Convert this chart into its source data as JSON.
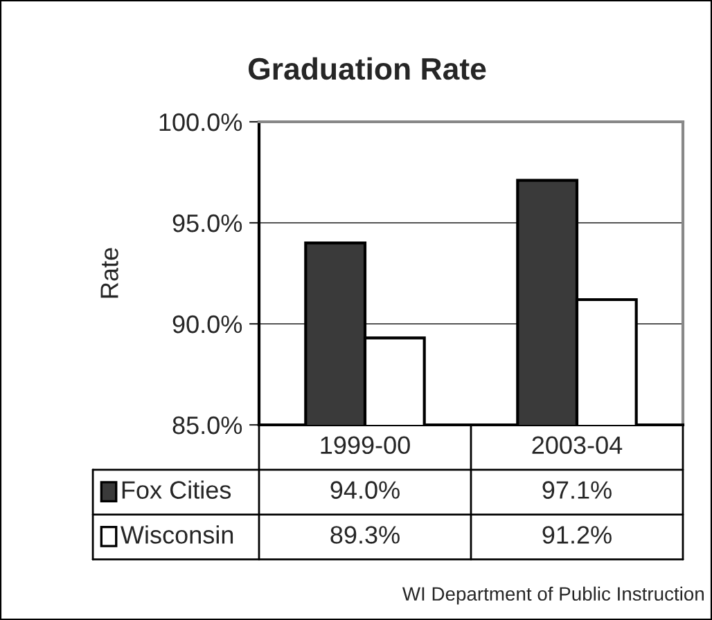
{
  "chart_data": {
    "type": "bar",
    "title": "Graduation Rate",
    "ylabel": "Rate",
    "categories": [
      "1999-00",
      "2003-04"
    ],
    "series": [
      {
        "name": "Fox Cities",
        "color": "#3a3a3a",
        "values": [
          94.0,
          97.1
        ],
        "value_labels": [
          "94.0%",
          "97.1%"
        ]
      },
      {
        "name": "Wisconsin",
        "color": "#ffffff",
        "values": [
          89.3,
          91.2
        ],
        "value_labels": [
          "89.3%",
          "91.2%"
        ]
      }
    ],
    "ylim": [
      85,
      100
    ],
    "yticks": [
      {
        "value": 85,
        "label": "85.0%"
      },
      {
        "value": 90,
        "label": "90.0%"
      },
      {
        "value": 95,
        "label": "95.0%"
      },
      {
        "value": 100,
        "label": "100.0%"
      }
    ],
    "grid": "y",
    "legend": "bottom",
    "annotations": [
      "WI Department of Public Instruction"
    ]
  }
}
